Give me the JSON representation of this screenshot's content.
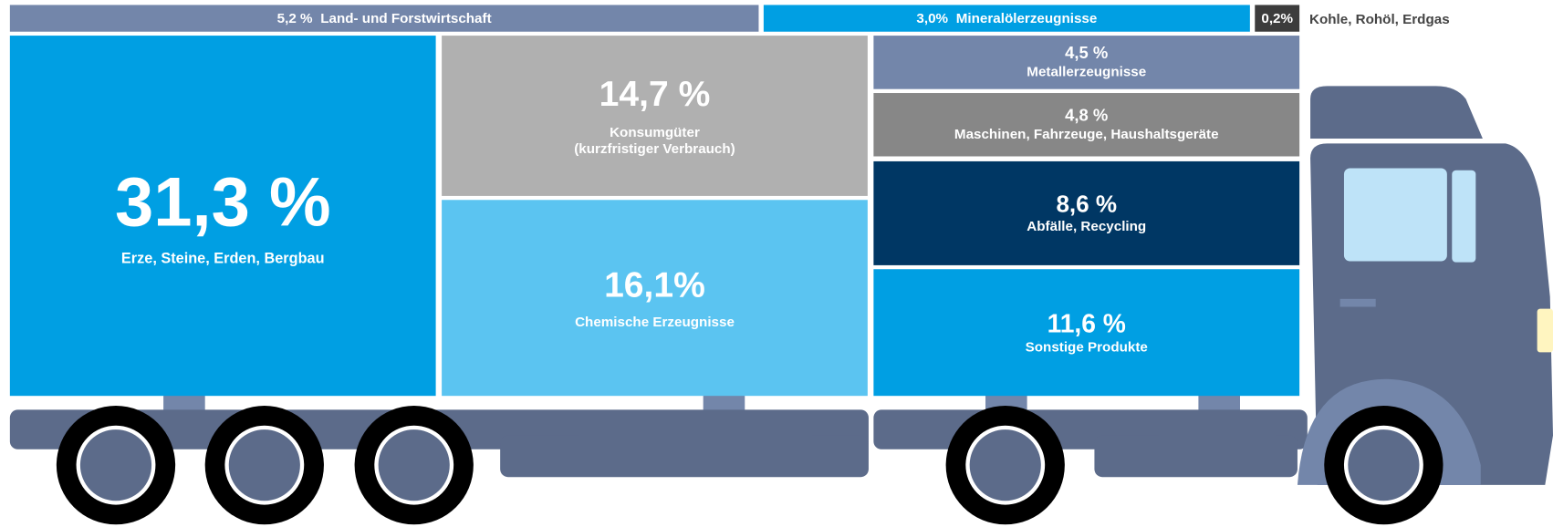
{
  "chart_data": {
    "type": "treemap",
    "categories": [
      "Land- und Forstwirtschaft",
      "Mineralölerzeugnisse",
      "Kohle, Rohöl, Erdgas",
      "Erze, Steine, Erden, Bergbau",
      "Konsumgüter\n(kurzfristiger Verbrauch)",
      "Chemische Erzeugnisse",
      "Metallerzeugnisse",
      "Maschinen, Fahrzeuge, Haushaltsgeräte",
      "Abfälle, Recycling",
      "Sonstige Produkte"
    ],
    "values": [
      5.2,
      3.0,
      0.2,
      31.3,
      14.7,
      16.1,
      4.5,
      4.8,
      8.6,
      11.6
    ],
    "value_labels": [
      "5,2 %",
      "3,0%",
      "0,2%",
      "31,3 %",
      "14,7 %",
      "16,1%",
      "4,5 %",
      "4,8 %",
      "8,6 %",
      "11,6 %"
    ],
    "colors": [
      "#7386aa",
      "#009fe3",
      "#3c3c3c",
      "#009fe3",
      "#b0b0b0",
      "#5bc4f1",
      "#7386aa",
      "#878787",
      "#003764",
      "#009fe3"
    ]
  }
}
